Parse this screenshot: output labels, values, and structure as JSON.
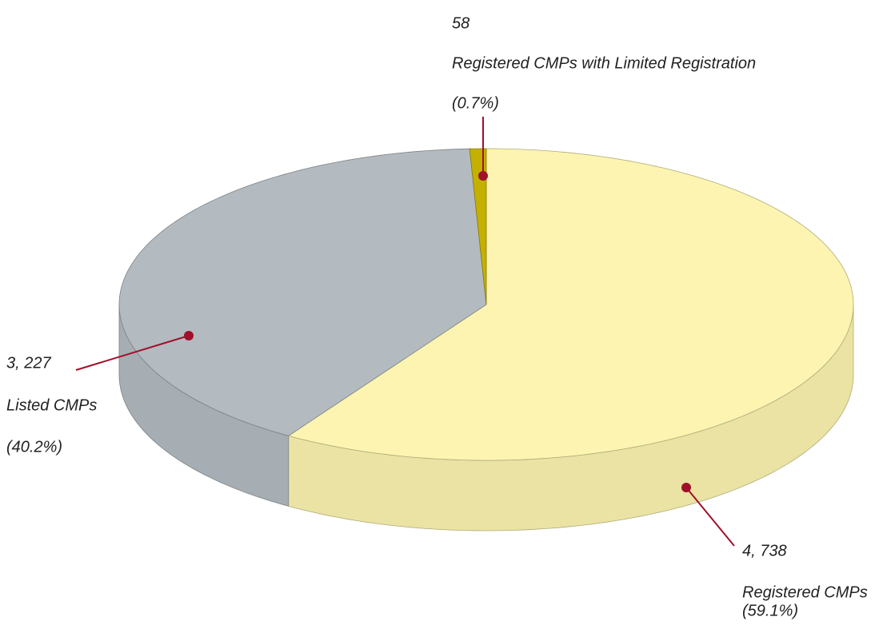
{
  "chart_data": {
    "type": "pie",
    "categories": [
      "Registered CMPs",
      "Listed CMPs",
      "Registered CMPs with Limited Registration"
    ],
    "values": [
      4738,
      3227,
      58
    ],
    "value_labels": [
      "4, 738",
      "3, 227",
      "58"
    ],
    "percentages": [
      59.1,
      40.2,
      0.7
    ],
    "percentage_labels": [
      "(59.1%)",
      "(40.2%)",
      "(0.7%)"
    ],
    "colors": [
      "#fcf4b0",
      "#b3bbc1",
      "#c4b000"
    ]
  }
}
